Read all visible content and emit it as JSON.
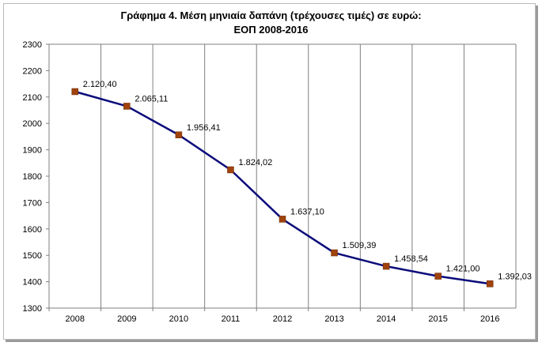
{
  "chart_data": {
    "type": "line",
    "title": "Γράφημα 4. Μέση μηνιαία δαπάνη (τρέχουσες τιμές) σε ευρώ:",
    "subtitle": "ΕΟΠ  2008-2016",
    "categories": [
      "2008",
      "2009",
      "2010",
      "2011",
      "2012",
      "2013",
      "2014",
      "2015",
      "2016"
    ],
    "values": [
      2120.4,
      2065.11,
      1956.41,
      1824.02,
      1637.1,
      1509.39,
      1458.54,
      1421.0,
      1392.03
    ],
    "data_labels": [
      "2.120,40",
      "2.065,11",
      "1.956,41",
      "1.824,02",
      "1.637,10",
      "1.509,39",
      "1.458,54",
      "1.421,00",
      "1.392,03"
    ],
    "ylim": [
      1300,
      2300
    ],
    "yticks": [
      1300,
      1400,
      1500,
      1600,
      1700,
      1800,
      1900,
      2000,
      2100,
      2200,
      2300
    ],
    "grid": "vertical",
    "legend": "none",
    "line_color": "#0a0a7a",
    "marker_color": "#a0420c"
  }
}
